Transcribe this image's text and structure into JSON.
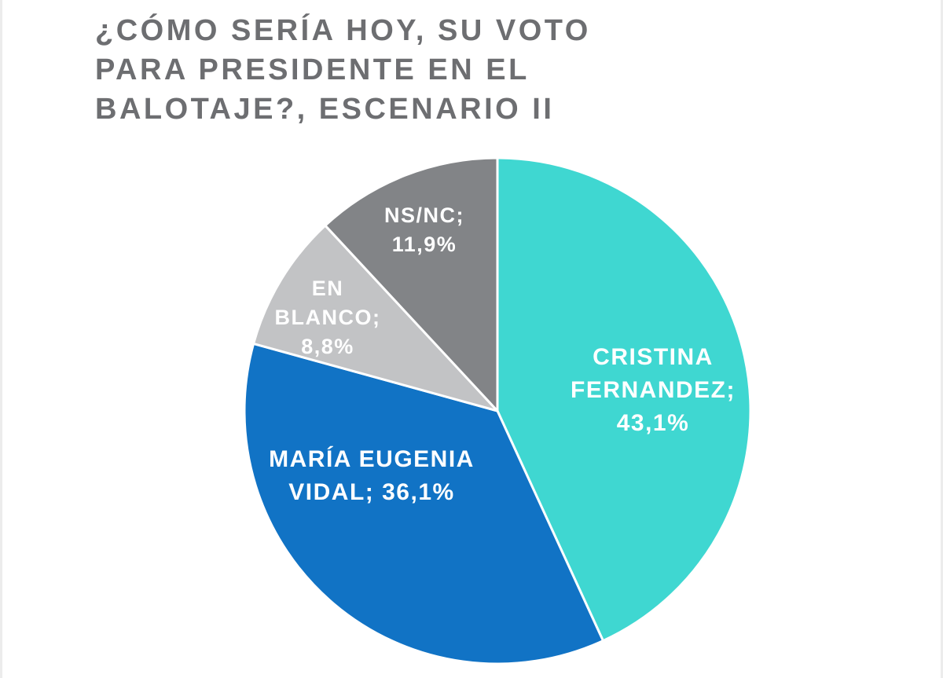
{
  "page": {
    "title": "¿CÓMO SERÍA HOY, SU VOTO\nPARA PRESIDENTE EN EL\nBALOTAJE?, ESCENARIO II"
  },
  "chart_data": {
    "type": "pie",
    "title": "¿CÓMO SERÍA HOY, SU VOTO PARA PRESIDENTE EN EL BALOTAJE?, ESCENARIO II",
    "start_angle_deg": 0,
    "direction": "clockwise",
    "legend_position": "none",
    "label_color": "#ffffff",
    "title_color": "#6d6e71",
    "slices": [
      {
        "label": "CRISTINA FERNANDEZ",
        "value": 43.1,
        "display": "CRISTINA FERNANDEZ; 43,1%",
        "label_lines": [
          "CRISTINA",
          "FERNANDEZ;",
          "43,1%"
        ],
        "color": "#3fd7d1"
      },
      {
        "label": "MARÍA EUGENIA VIDAL",
        "value": 36.1,
        "display": "MARÍA EUGENIA VIDAL; 36,1%",
        "label_lines": [
          "MARÍA EUGENIA",
          "VIDAL; 36,1%"
        ],
        "color": "#1173c5"
      },
      {
        "label": "EN BLANCO",
        "value": 8.8,
        "display": "EN BLANCO; 8,8%",
        "label_lines": [
          "EN",
          "BLANCO;",
          "8,8%"
        ],
        "color": "#c2c3c5"
      },
      {
        "label": "NS/NC",
        "value": 11.9,
        "display": "NS/NC; 11,9%",
        "label_lines": [
          "NS/NC;",
          "11,9%"
        ],
        "color": "#828487"
      }
    ]
  }
}
